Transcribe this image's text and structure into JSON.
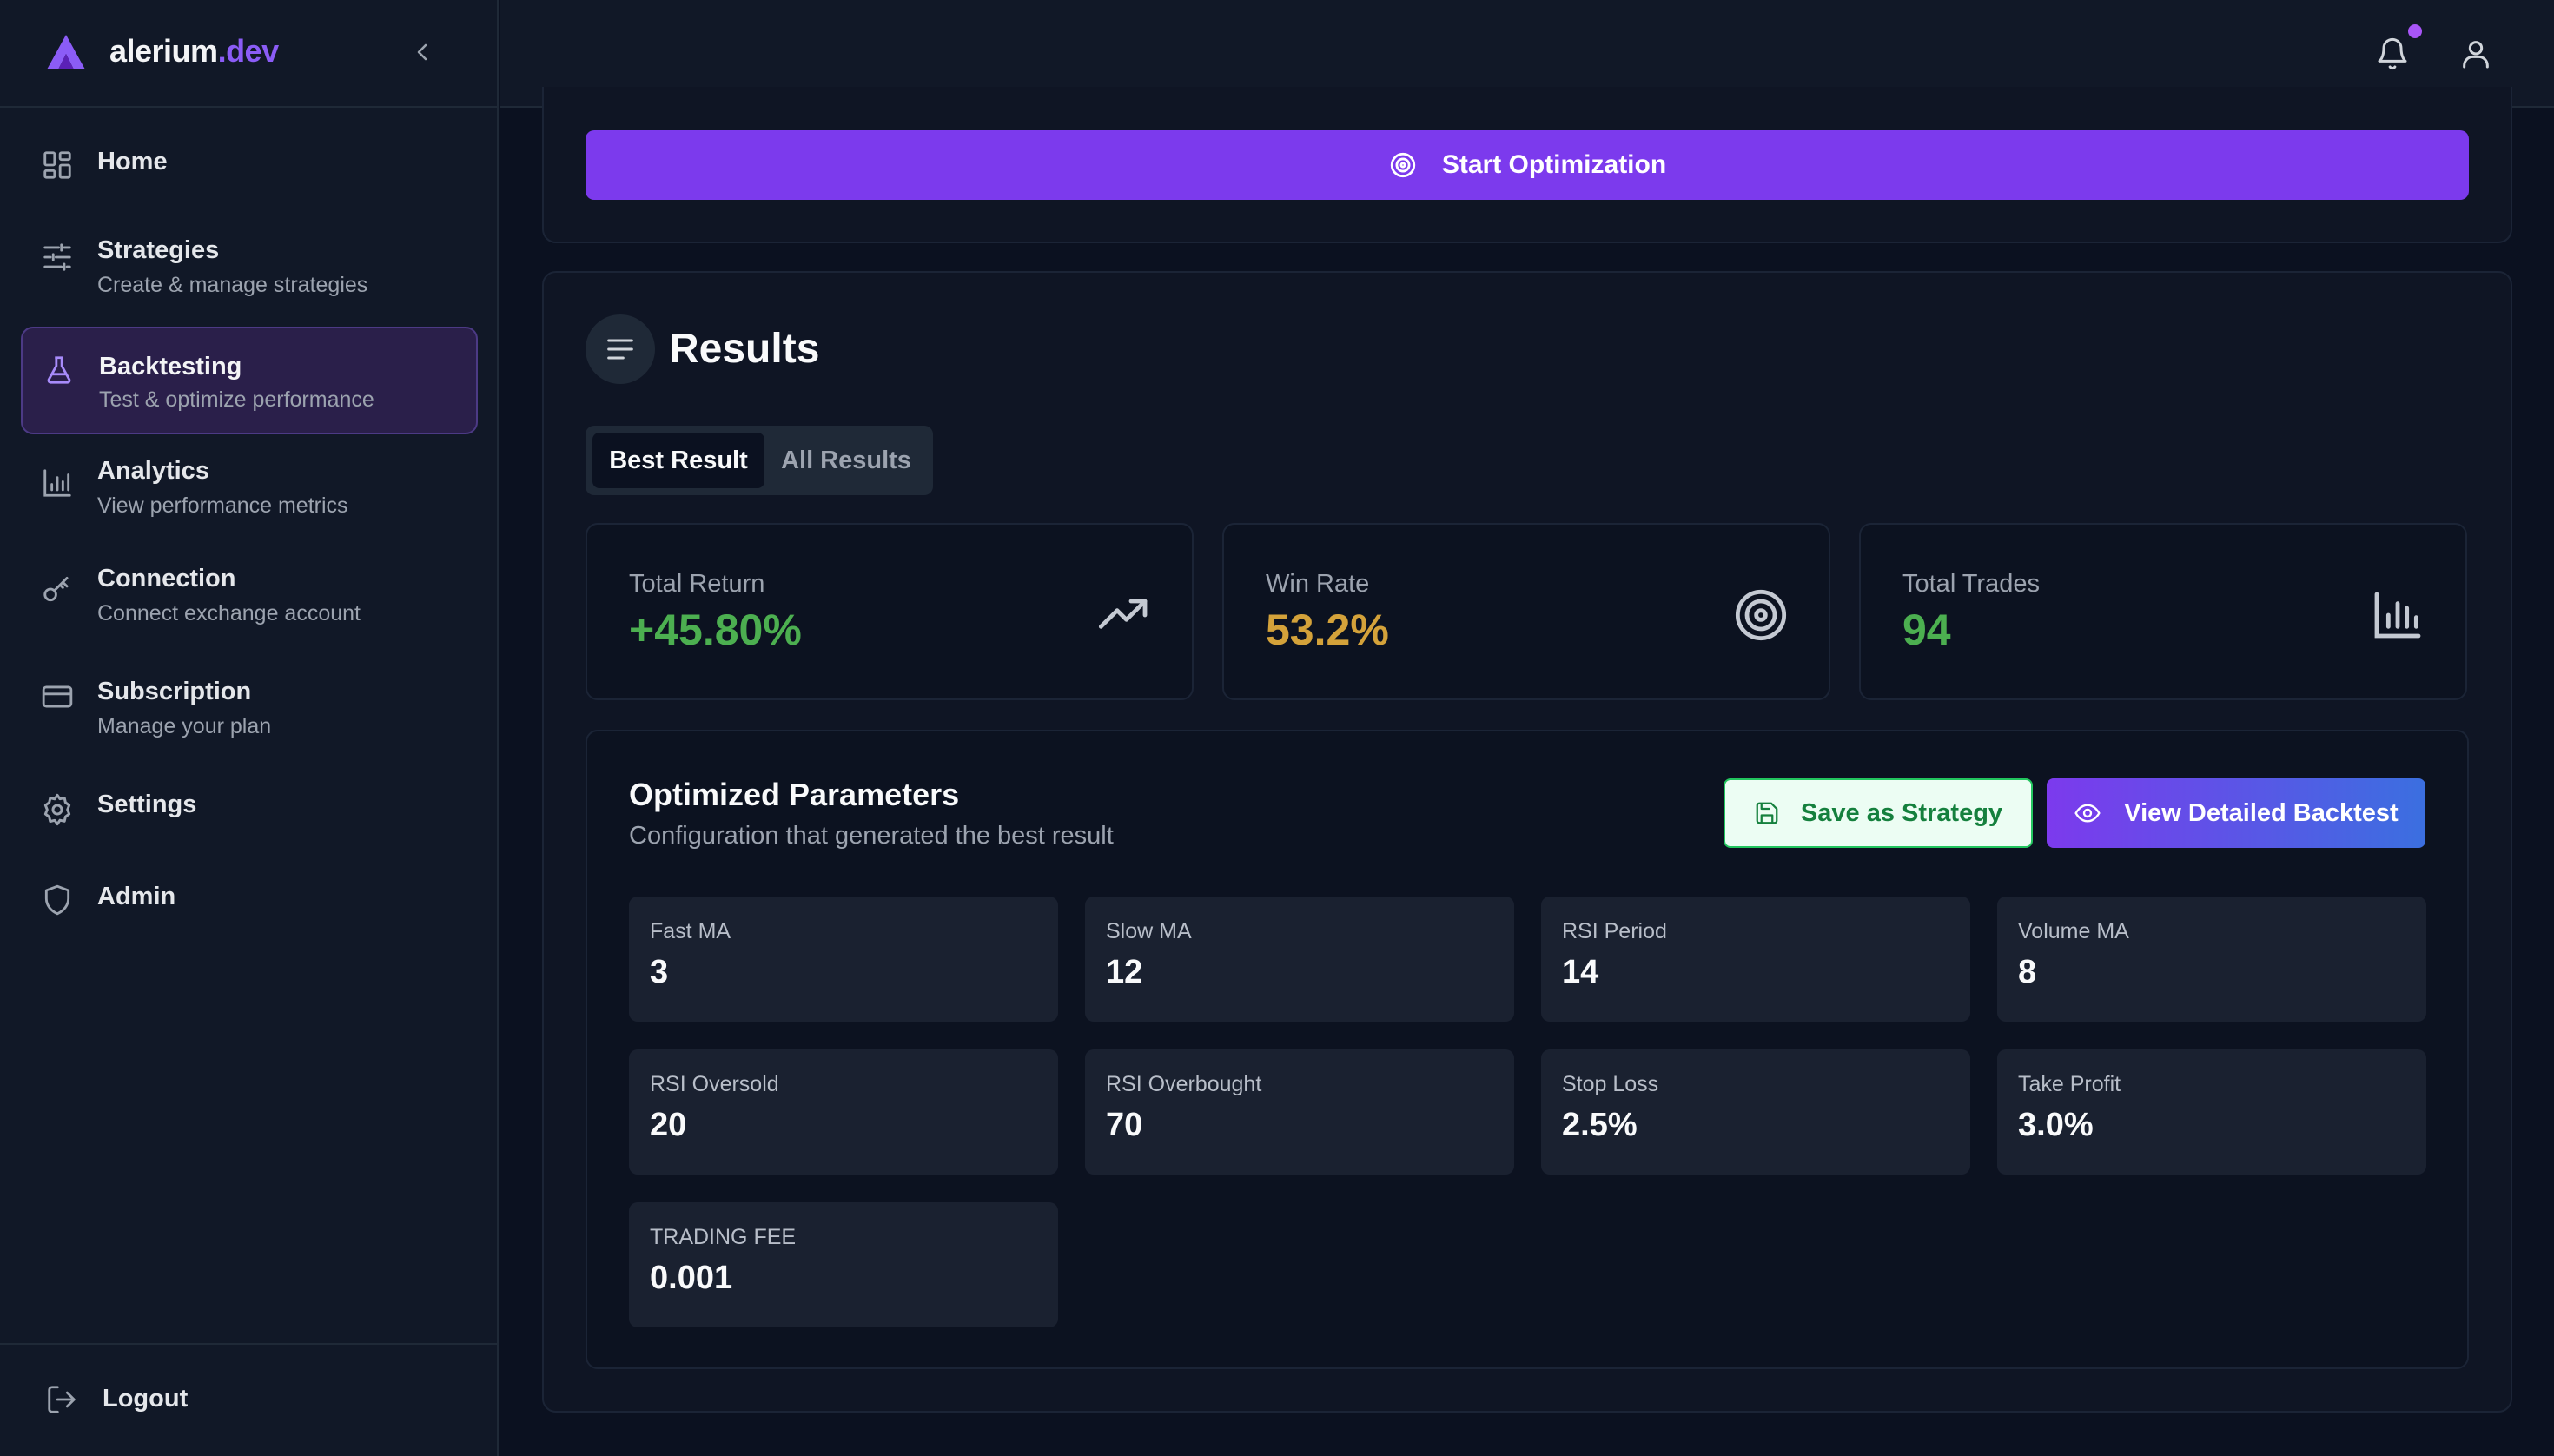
{
  "brand": {
    "name": "alerium",
    "suffix": ".dev"
  },
  "sidebar": {
    "items": [
      {
        "label": "Home",
        "sub": ""
      },
      {
        "label": "Strategies",
        "sub": "Create & manage strategies"
      },
      {
        "label": "Backtesting",
        "sub": "Test & optimize performance"
      },
      {
        "label": "Analytics",
        "sub": "View performance metrics"
      },
      {
        "label": "Connection",
        "sub": "Connect exchange account"
      },
      {
        "label": "Subscription",
        "sub": "Manage your plan"
      },
      {
        "label": "Settings",
        "sub": ""
      },
      {
        "label": "Admin",
        "sub": ""
      }
    ],
    "active_index": 2,
    "logout_label": "Logout"
  },
  "main": {
    "start_button_label": "Start Optimization",
    "results_title": "Results",
    "tabs": [
      {
        "label": "Best Result",
        "active": true
      },
      {
        "label": "All Results",
        "active": false
      }
    ],
    "stats": [
      {
        "label": "Total Return",
        "value": "+45.80%",
        "color": "#4caf50",
        "icon": "trending-up-icon"
      },
      {
        "label": "Win Rate",
        "value": "53.2%",
        "color": "#d4a23a",
        "icon": "target-icon"
      },
      {
        "label": "Total Trades",
        "value": "94",
        "color": "#4caf50",
        "icon": "bar-chart-icon"
      }
    ],
    "params": {
      "title": "Optimized Parameters",
      "subtitle": "Configuration that generated the best result",
      "save_label": "Save as Strategy",
      "view_label": "View Detailed Backtest",
      "cells": [
        {
          "label": "Fast MA",
          "value": "3"
        },
        {
          "label": "Slow MA",
          "value": "12"
        },
        {
          "label": "RSI Period",
          "value": "14"
        },
        {
          "label": "Volume MA",
          "value": "8"
        },
        {
          "label": "RSI Oversold",
          "value": "20"
        },
        {
          "label": "RSI Overbought",
          "value": "70"
        },
        {
          "label": "Stop Loss",
          "value": "2.5%"
        },
        {
          "label": "Take Profit",
          "value": "3.0%"
        },
        {
          "label": "TRADING FEE",
          "value": "0.001"
        }
      ]
    }
  },
  "colors": {
    "accent": "#7c3aed",
    "bell_dot": "#a855f7",
    "success": "#4caf50",
    "warning": "#d4a23a"
  }
}
